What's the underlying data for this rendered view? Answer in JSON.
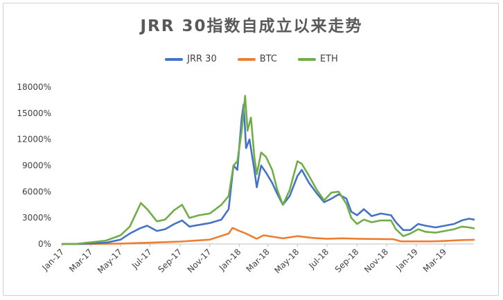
{
  "chart_data": {
    "type": "line",
    "title": "JRR 30指数自成立以来走势",
    "xlabel": "",
    "ylabel": "",
    "ylim": [
      0,
      18000
    ],
    "yticks": [
      0,
      3000,
      6000,
      9000,
      12000,
      15000,
      18000
    ],
    "ytick_labels": [
      "0%",
      "3000%",
      "6000%",
      "9000%",
      "12000%",
      "15000%",
      "18000%"
    ],
    "xtick_labels": [
      "Jan-17",
      "Mar-17",
      "May-17",
      "Jul-17",
      "Sep-17",
      "Nov-17",
      "Jan-18",
      "Mar-18",
      "May-18",
      "Jul-18",
      "Sep-18",
      "Nov-18",
      "Jan-19",
      "Mar-19"
    ],
    "xtick_dates": [
      "2017-01-01",
      "2017-03-01",
      "2017-05-01",
      "2017-07-01",
      "2017-09-01",
      "2017-11-01",
      "2018-01-01",
      "2018-03-01",
      "2018-05-01",
      "2018-07-01",
      "2018-09-01",
      "2018-11-01",
      "2019-01-01",
      "2019-03-01"
    ],
    "xlim": [
      "2017-01-01",
      "2019-04-30"
    ],
    "legend_position": "top",
    "grid": "horizontal-off",
    "series": [
      {
        "name": "JRR 30",
        "color": "#4472C4",
        "points": [
          [
            "2017-01-01",
            0
          ],
          [
            "2017-02-01",
            10
          ],
          [
            "2017-03-01",
            60
          ],
          [
            "2017-04-01",
            150
          ],
          [
            "2017-05-01",
            500
          ],
          [
            "2017-05-20",
            1200
          ],
          [
            "2017-06-10",
            1800
          ],
          [
            "2017-06-25",
            2100
          ],
          [
            "2017-07-15",
            1500
          ],
          [
            "2017-08-01",
            1700
          ],
          [
            "2017-08-20",
            2300
          ],
          [
            "2017-09-05",
            2700
          ],
          [
            "2017-09-20",
            2000
          ],
          [
            "2017-10-10",
            2200
          ],
          [
            "2017-11-01",
            2400
          ],
          [
            "2017-11-25",
            2800
          ],
          [
            "2017-12-10",
            4000
          ],
          [
            "2017-12-20",
            9000
          ],
          [
            "2017-12-28",
            8500
          ],
          [
            "2018-01-06",
            14500
          ],
          [
            "2018-01-10",
            16000
          ],
          [
            "2018-01-15",
            11000
          ],
          [
            "2018-01-22",
            12000
          ],
          [
            "2018-02-01",
            8500
          ],
          [
            "2018-02-06",
            6500
          ],
          [
            "2018-02-15",
            9000
          ],
          [
            "2018-02-25",
            8200
          ],
          [
            "2018-03-10",
            7000
          ],
          [
            "2018-03-20",
            5800
          ],
          [
            "2018-04-01",
            4500
          ],
          [
            "2018-04-15",
            5500
          ],
          [
            "2018-05-01",
            7800
          ],
          [
            "2018-05-10",
            8500
          ],
          [
            "2018-05-25",
            7000
          ],
          [
            "2018-06-10",
            5800
          ],
          [
            "2018-06-25",
            4800
          ],
          [
            "2018-07-10",
            5200
          ],
          [
            "2018-07-25",
            5700
          ],
          [
            "2018-08-10",
            5200
          ],
          [
            "2018-08-20",
            3700
          ],
          [
            "2018-09-01",
            3300
          ],
          [
            "2018-09-15",
            4000
          ],
          [
            "2018-10-01",
            3200
          ],
          [
            "2018-10-20",
            3500
          ],
          [
            "2018-11-10",
            3300
          ],
          [
            "2018-11-20",
            2500
          ],
          [
            "2018-12-05",
            1600
          ],
          [
            "2018-12-20",
            1600
          ],
          [
            "2019-01-05",
            2300
          ],
          [
            "2019-01-20",
            2100
          ],
          [
            "2019-02-10",
            1900
          ],
          [
            "2019-03-01",
            2100
          ],
          [
            "2019-03-20",
            2300
          ],
          [
            "2019-04-05",
            2700
          ],
          [
            "2019-04-20",
            2900
          ],
          [
            "2019-04-30",
            2800
          ]
        ]
      },
      {
        "name": "BTC",
        "color": "#ED7D31",
        "points": [
          [
            "2017-01-01",
            0
          ],
          [
            "2017-03-01",
            10
          ],
          [
            "2017-05-01",
            50
          ],
          [
            "2017-07-01",
            150
          ],
          [
            "2017-09-01",
            280
          ],
          [
            "2017-11-01",
            500
          ],
          [
            "2017-12-10",
            1200
          ],
          [
            "2017-12-18",
            1850
          ],
          [
            "2018-01-01",
            1500
          ],
          [
            "2018-01-15",
            1200
          ],
          [
            "2018-02-06",
            600
          ],
          [
            "2018-02-20",
            1000
          ],
          [
            "2018-03-15",
            800
          ],
          [
            "2018-04-01",
            650
          ],
          [
            "2018-05-01",
            900
          ],
          [
            "2018-06-01",
            700
          ],
          [
            "2018-07-01",
            600
          ],
          [
            "2018-08-01",
            650
          ],
          [
            "2018-09-01",
            600
          ],
          [
            "2018-11-15",
            550
          ],
          [
            "2018-12-01",
            300
          ],
          [
            "2019-01-01",
            300
          ],
          [
            "2019-02-01",
            300
          ],
          [
            "2019-03-01",
            350
          ],
          [
            "2019-04-05",
            450
          ],
          [
            "2019-04-30",
            480
          ]
        ]
      },
      {
        "name": "ETH",
        "color": "#70AD47",
        "points": [
          [
            "2017-01-01",
            0
          ],
          [
            "2017-02-01",
            20
          ],
          [
            "2017-03-01",
            200
          ],
          [
            "2017-04-01",
            400
          ],
          [
            "2017-05-01",
            1000
          ],
          [
            "2017-05-20",
            2000
          ],
          [
            "2017-06-12",
            4700
          ],
          [
            "2017-06-25",
            4000
          ],
          [
            "2017-07-15",
            2600
          ],
          [
            "2017-08-01",
            2800
          ],
          [
            "2017-08-20",
            3900
          ],
          [
            "2017-09-05",
            4500
          ],
          [
            "2017-09-20",
            3000
          ],
          [
            "2017-10-10",
            3300
          ],
          [
            "2017-11-01",
            3500
          ],
          [
            "2017-11-25",
            4500
          ],
          [
            "2017-12-10",
            5500
          ],
          [
            "2017-12-20",
            9000
          ],
          [
            "2017-12-28",
            9500
          ],
          [
            "2018-01-06",
            13000
          ],
          [
            "2018-01-13",
            17000
          ],
          [
            "2018-01-18",
            13000
          ],
          [
            "2018-01-25",
            14500
          ],
          [
            "2018-02-01",
            10000
          ],
          [
            "2018-02-06",
            8000
          ],
          [
            "2018-02-15",
            10500
          ],
          [
            "2018-02-25",
            10000
          ],
          [
            "2018-03-10",
            8500
          ],
          [
            "2018-03-20",
            6300
          ],
          [
            "2018-04-01",
            4500
          ],
          [
            "2018-04-15",
            6200
          ],
          [
            "2018-05-01",
            9500
          ],
          [
            "2018-05-10",
            9200
          ],
          [
            "2018-05-25",
            7800
          ],
          [
            "2018-06-10",
            6200
          ],
          [
            "2018-06-25",
            5000
          ],
          [
            "2018-07-10",
            5900
          ],
          [
            "2018-07-25",
            6000
          ],
          [
            "2018-08-10",
            4600
          ],
          [
            "2018-08-20",
            3000
          ],
          [
            "2018-09-01",
            2300
          ],
          [
            "2018-09-15",
            2800
          ],
          [
            "2018-10-01",
            2500
          ],
          [
            "2018-10-20",
            2700
          ],
          [
            "2018-11-10",
            2700
          ],
          [
            "2018-11-20",
            1700
          ],
          [
            "2018-12-05",
            900
          ],
          [
            "2018-12-20",
            1200
          ],
          [
            "2019-01-05",
            1700
          ],
          [
            "2019-01-20",
            1400
          ],
          [
            "2019-02-10",
            1300
          ],
          [
            "2019-03-01",
            1500
          ],
          [
            "2019-03-20",
            1700
          ],
          [
            "2019-04-05",
            2000
          ],
          [
            "2019-04-20",
            1900
          ],
          [
            "2019-04-30",
            1800
          ]
        ]
      }
    ]
  }
}
